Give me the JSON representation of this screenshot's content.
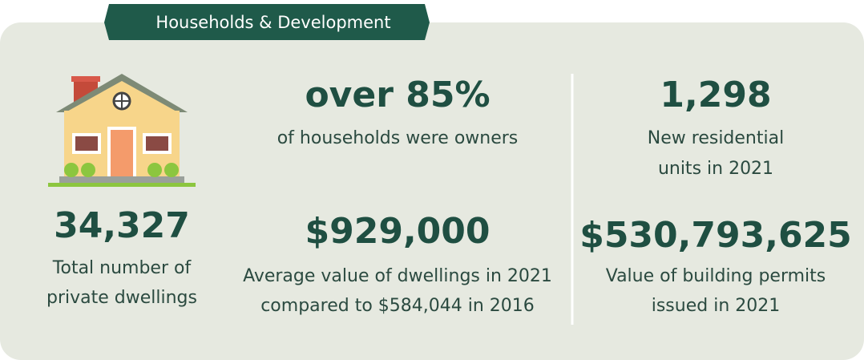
{
  "header": {
    "title": "Households & Development"
  },
  "stats": [
    {
      "value": "34,327",
      "label": [
        "Total number of",
        "private dwellings"
      ]
    },
    {
      "value": "over 85%",
      "label": [
        "of households were owners"
      ]
    },
    {
      "value": "$929,000",
      "label": [
        "Average value of dwellings in 2021",
        "compared to $584,044 in 2016"
      ]
    },
    {
      "value": "1,298",
      "label": [
        "New residential",
        "units in 2021"
      ]
    },
    {
      "value": "$530,793,625",
      "label": [
        "Value of building permits",
        "issued in 2021"
      ]
    }
  ]
}
